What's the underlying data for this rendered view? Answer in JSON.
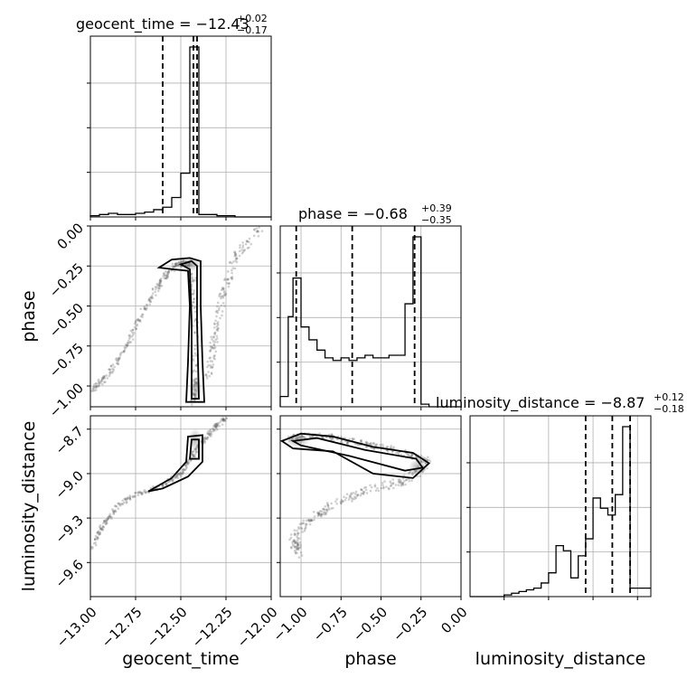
{
  "chart_data": {
    "type": "corner",
    "parameters": [
      "geocent_time",
      "phase",
      "luminosity_distance"
    ],
    "titles": [
      {
        "param": "geocent_time",
        "label": "geocent_time = −12.43",
        "plus": "+0.02",
        "minus": "−0.17"
      },
      {
        "param": "phase",
        "label": "phase = −0.68",
        "plus": "+0.39",
        "minus": "−0.35"
      },
      {
        "param": "luminosity_distance",
        "label": "luminosity_distance = −8.87",
        "plus": "+0.12",
        "minus": "−0.18"
      }
    ],
    "axis_labels": {
      "x": [
        "geocent_time",
        "phase",
        "luminosity_distance"
      ],
      "y": [
        "",
        "phase",
        "luminosity_distance"
      ]
    },
    "ranges": {
      "geocent_time": [
        -13.0,
        -12.0
      ],
      "phase": [
        -1.13,
        0.0
      ],
      "luminosity_distance": [
        -9.83,
        -8.61
      ]
    },
    "ticks": {
      "geocent_time": {
        "values": [
          -13.0,
          -12.75,
          -12.5,
          -12.25,
          -12.0
        ],
        "labels": [
          "−13.00",
          "−12.75",
          "−12.50",
          "−12.25",
          "−12.00"
        ]
      },
      "phase": {
        "values": [
          -1.0,
          -0.75,
          -0.5,
          -0.25,
          0.0
        ],
        "labels": [
          "−1.00",
          "−0.75",
          "−0.50",
          "−0.25",
          "0.00"
        ]
      },
      "luminosity_distance": {
        "values": [
          -9.6,
          -9.3,
          -9.0,
          -8.7
        ],
        "labels": [
          "−9.6",
          "−9.3",
          "−9.0",
          "−8.7"
        ]
      }
    },
    "quantiles": {
      "geocent_time": [
        -12.6,
        -12.43,
        -12.41
      ],
      "phase": [
        -1.03,
        -0.68,
        -0.29
      ],
      "luminosity_distance": [
        -9.05,
        -8.87,
        -8.75
      ]
    },
    "histograms": {
      "geocent_time": {
        "edges": [
          -13.0,
          -12.95,
          -12.9,
          -12.85,
          -12.8,
          -12.75,
          -12.7,
          -12.65,
          -12.6,
          -12.55,
          -12.5,
          -12.45,
          -12.4,
          -12.35,
          -12.3,
          -12.25,
          -12.2,
          -12.15,
          -12.1,
          -12.05,
          -12.0
        ],
        "counts": [
          1,
          2,
          3,
          2,
          2,
          3,
          4,
          6,
          8,
          16,
          36,
          140,
          2,
          2,
          1,
          1,
          0,
          0,
          0,
          0
        ]
      },
      "phase": {
        "edges": [
          -1.13,
          -1.08,
          -1.05,
          -1.0,
          -0.95,
          -0.9,
          -0.85,
          -0.8,
          -0.75,
          -0.7,
          -0.65,
          -0.6,
          -0.55,
          -0.5,
          -0.45,
          -0.4,
          -0.35,
          -0.3,
          -0.25,
          -0.2,
          -0.15,
          -0.1,
          -0.05,
          0.0
        ],
        "counts": [
          4,
          35,
          50,
          31,
          26,
          22,
          19,
          18,
          19,
          18,
          19,
          20,
          19,
          19,
          20,
          20,
          40,
          66,
          1,
          0,
          0,
          0,
          0
        ]
      },
      "luminosity_distance": {
        "edges": [
          -9.83,
          -9.75,
          -9.7,
          -9.65,
          -9.6,
          -9.55,
          -9.5,
          -9.45,
          -9.4,
          -9.35,
          -9.3,
          -9.25,
          -9.2,
          -9.15,
          -9.1,
          -9.05,
          -9.0,
          -8.95,
          -8.9,
          -8.85,
          -8.8,
          -8.75,
          -8.7,
          -8.65,
          -8.61
        ],
        "counts": [
          0,
          0,
          0,
          0,
          1,
          2,
          3,
          4,
          5,
          8,
          14,
          30,
          27,
          11,
          24,
          34,
          58,
          52,
          48,
          60,
          100,
          5,
          5,
          5
        ]
      }
    }
  }
}
